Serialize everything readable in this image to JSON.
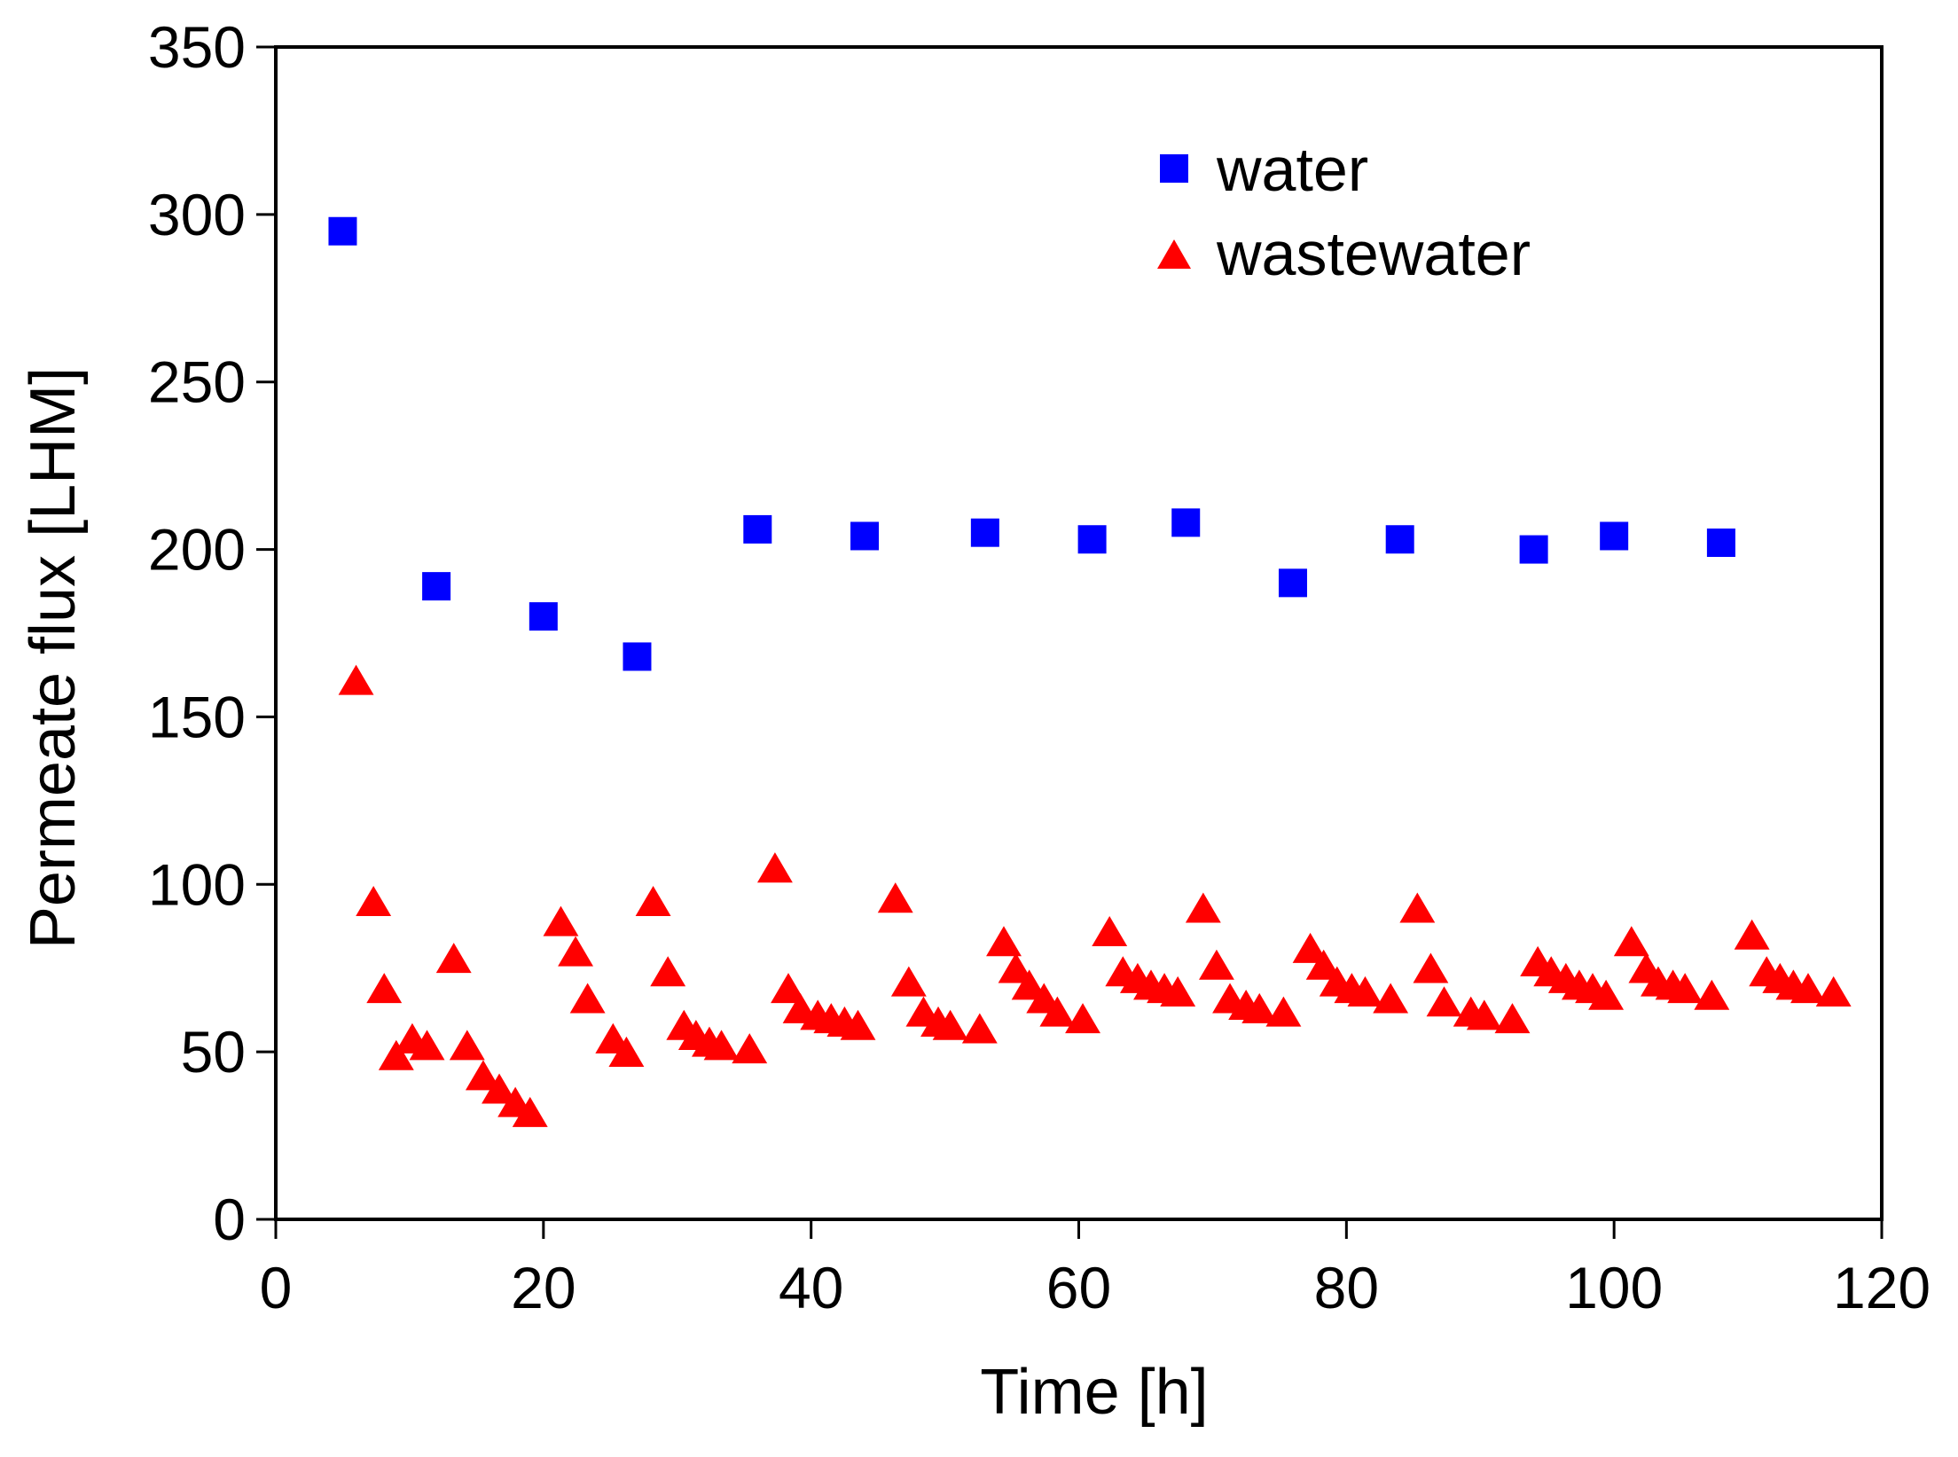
{
  "chart_data": {
    "type": "scatter",
    "title": "",
    "xlabel": "Time [h]",
    "ylabel": "Permeate flux [LHM]",
    "xlim": [
      0,
      120
    ],
    "ylim": [
      0,
      350
    ],
    "xticks": [
      0,
      20,
      40,
      60,
      80,
      100,
      120
    ],
    "yticks": [
      0,
      50,
      100,
      150,
      200,
      250,
      300,
      350
    ],
    "grid": false,
    "legend_position": "top-right",
    "series": [
      {
        "name": "water",
        "marker": "square",
        "color": "#0000ff",
        "points": [
          [
            5,
            295
          ],
          [
            12,
            189
          ],
          [
            20,
            180
          ],
          [
            27,
            168
          ],
          [
            36,
            206
          ],
          [
            44,
            204
          ],
          [
            53,
            205
          ],
          [
            61,
            203
          ],
          [
            68,
            208
          ],
          [
            76,
            190
          ],
          [
            84,
            203
          ],
          [
            94,
            200
          ],
          [
            100,
            204
          ],
          [
            108,
            202
          ]
        ]
      },
      {
        "name": "wastewater",
        "marker": "triangle",
        "color": "#ff0000",
        "points": [
          [
            6,
            160
          ],
          [
            7.3,
            94
          ],
          [
            8.1,
            68
          ],
          [
            9,
            48
          ],
          [
            10.2,
            53
          ],
          [
            11.3,
            51
          ],
          [
            13.3,
            77
          ],
          [
            14.3,
            51
          ],
          [
            15.5,
            42
          ],
          [
            16.7,
            38
          ],
          [
            17.9,
            34
          ],
          [
            19,
            31
          ],
          [
            21.3,
            88
          ],
          [
            22.4,
            79
          ],
          [
            23.3,
            65
          ],
          [
            25.2,
            53
          ],
          [
            26.2,
            49
          ],
          [
            28.2,
            94
          ],
          [
            29.3,
            73
          ],
          [
            30.5,
            57
          ],
          [
            31.4,
            54
          ],
          [
            32.4,
            52
          ],
          [
            33.3,
            51
          ],
          [
            35.4,
            50
          ],
          [
            37.3,
            104
          ],
          [
            38.3,
            68
          ],
          [
            39.2,
            62
          ],
          [
            40.5,
            60
          ],
          [
            41.5,
            59
          ],
          [
            42.5,
            58
          ],
          [
            43.5,
            57
          ],
          [
            46.3,
            95
          ],
          [
            47.3,
            70
          ],
          [
            48.4,
            61
          ],
          [
            49.5,
            58
          ],
          [
            50.4,
            57
          ],
          [
            52.6,
            56
          ],
          [
            54.4,
            82
          ],
          [
            55.3,
            74
          ],
          [
            56.3,
            69
          ],
          [
            57.4,
            65
          ],
          [
            58.4,
            61
          ],
          [
            60.3,
            59
          ],
          [
            62.3,
            85
          ],
          [
            63.3,
            73
          ],
          [
            64.4,
            71
          ],
          [
            65.4,
            69
          ],
          [
            66.4,
            68
          ],
          [
            67.4,
            67
          ],
          [
            69.3,
            92
          ],
          [
            70.3,
            75
          ],
          [
            71.3,
            65
          ],
          [
            72.5,
            63
          ],
          [
            73.5,
            62
          ],
          [
            75.3,
            61
          ],
          [
            77.3,
            80
          ],
          [
            78.3,
            75
          ],
          [
            79.3,
            70
          ],
          [
            80.4,
            68
          ],
          [
            81.4,
            67
          ],
          [
            83.3,
            65
          ],
          [
            85.3,
            92
          ],
          [
            86.3,
            74
          ],
          [
            87.3,
            64
          ],
          [
            89.3,
            61
          ],
          [
            90.3,
            60
          ],
          [
            92.4,
            59
          ],
          [
            94.3,
            76
          ],
          [
            95.3,
            73
          ],
          [
            96.4,
            71
          ],
          [
            97.4,
            69
          ],
          [
            98.4,
            68
          ],
          [
            99.4,
            66
          ],
          [
            101.3,
            82
          ],
          [
            102.4,
            74
          ],
          [
            103.3,
            70
          ],
          [
            104.4,
            69
          ],
          [
            105.3,
            68
          ],
          [
            107.3,
            66
          ],
          [
            110.3,
            84
          ],
          [
            111.4,
            73
          ],
          [
            112.4,
            71
          ],
          [
            113.4,
            69
          ],
          [
            114.5,
            68
          ],
          [
            116.4,
            67
          ]
        ]
      }
    ]
  }
}
